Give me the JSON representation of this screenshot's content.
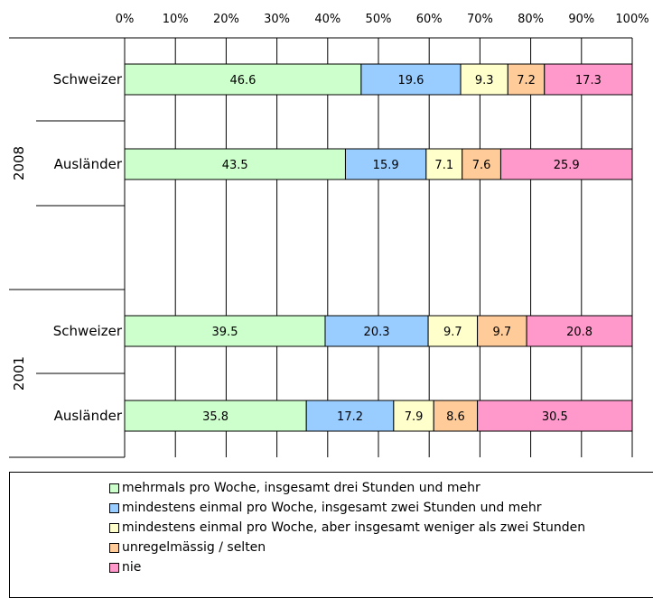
{
  "chart_data": {
    "type": "bar",
    "orientation": "horizontal",
    "stacked": true,
    "percent": true,
    "xlim": [
      0,
      100
    ],
    "xticks": [
      "0%",
      "10%",
      "20%",
      "30%",
      "40%",
      "50%",
      "60%",
      "70%",
      "80%",
      "90%",
      "100%"
    ],
    "grid": true,
    "legend_position": "bottom",
    "groups": [
      {
        "label": "2008",
        "categories": [
          "Schweizer",
          "Ausländer"
        ]
      },
      {
        "label": "2001",
        "categories": [
          "Schweizer",
          "Ausländer"
        ]
      }
    ],
    "series": [
      {
        "name": "mehrmals pro Woche, insgesamt drei Stunden und mehr",
        "color": "#CCFFCC",
        "values": [
          46.6,
          43.5,
          39.5,
          35.8
        ]
      },
      {
        "name": "mindestens einmal pro Woche, insgesamt zwei Stunden und mehr",
        "color": "#99CCFF",
        "values": [
          19.6,
          15.9,
          20.3,
          17.2
        ]
      },
      {
        "name": "mindestens einmal pro Woche, aber insgesamt weniger als zwei Stunden",
        "color": "#FFFFCC",
        "values": [
          9.3,
          7.1,
          9.7,
          7.9
        ]
      },
      {
        "name": "unregelmässig / selten",
        "color": "#FFCC99",
        "values": [
          7.2,
          7.6,
          9.7,
          8.6
        ]
      },
      {
        "name": "nie",
        "color": "#FF99CC",
        "values": [
          17.3,
          25.9,
          20.8,
          30.5
        ]
      }
    ]
  }
}
